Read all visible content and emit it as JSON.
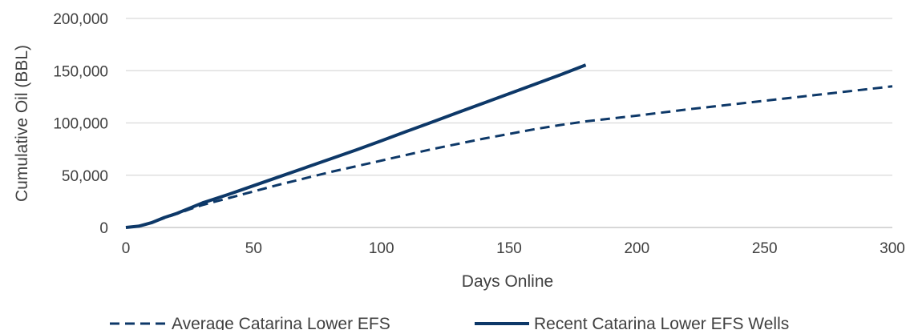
{
  "chart_data": {
    "type": "line",
    "title": "",
    "xlabel": "Days Online",
    "ylabel": "Cumulative Oil (BBL)",
    "xlim": [
      0,
      300
    ],
    "ylim": [
      0,
      200000
    ],
    "x_ticks": [
      0,
      50,
      100,
      150,
      200,
      250,
      300
    ],
    "y_ticks": [
      0,
      50000,
      100000,
      150000,
      200000
    ],
    "x_tick_labels": [
      "0",
      "50",
      "100",
      "150",
      "200",
      "250",
      "300"
    ],
    "y_tick_labels": [
      "0",
      "50,000",
      "100,000",
      "150,000",
      "200,000"
    ],
    "grid": "horizontal",
    "legend_position": "bottom",
    "colors": {
      "series": "#0d3868",
      "grid": "#d9d9d9",
      "text": "#404040"
    },
    "series": [
      {
        "name": "Average Catarina Lower EFS",
        "style": "dashed",
        "points": [
          [
            0,
            0
          ],
          [
            5,
            1000
          ],
          [
            10,
            4500
          ],
          [
            15,
            9000
          ],
          [
            20,
            13000
          ],
          [
            25,
            17500
          ],
          [
            30,
            21500
          ],
          [
            40,
            28000
          ],
          [
            50,
            34500
          ],
          [
            60,
            41000
          ],
          [
            70,
            47000
          ],
          [
            80,
            53000
          ],
          [
            90,
            58500
          ],
          [
            100,
            64000
          ],
          [
            110,
            69500
          ],
          [
            120,
            75000
          ],
          [
            130,
            80000
          ],
          [
            140,
            85000
          ],
          [
            150,
            89500
          ],
          [
            160,
            94000
          ],
          [
            170,
            98000
          ],
          [
            180,
            101500
          ],
          [
            200,
            107000
          ],
          [
            220,
            113000
          ],
          [
            240,
            118500
          ],
          [
            260,
            124000
          ],
          [
            280,
            129500
          ],
          [
            300,
            135000
          ]
        ]
      },
      {
        "name": "Recent Catarina Lower EFS Wells",
        "style": "solid",
        "points": [
          [
            0,
            0
          ],
          [
            5,
            1200
          ],
          [
            10,
            4500
          ],
          [
            15,
            9500
          ],
          [
            20,
            13500
          ],
          [
            25,
            18500
          ],
          [
            30,
            23500
          ],
          [
            40,
            31500
          ],
          [
            50,
            40000
          ],
          [
            60,
            48500
          ],
          [
            70,
            57000
          ],
          [
            80,
            65500
          ],
          [
            90,
            74000
          ],
          [
            100,
            83000
          ],
          [
            110,
            92000
          ],
          [
            120,
            101000
          ],
          [
            130,
            110000
          ],
          [
            140,
            119000
          ],
          [
            150,
            128000
          ],
          [
            160,
            137000
          ],
          [
            170,
            146000
          ],
          [
            180,
            155500
          ]
        ]
      }
    ]
  }
}
